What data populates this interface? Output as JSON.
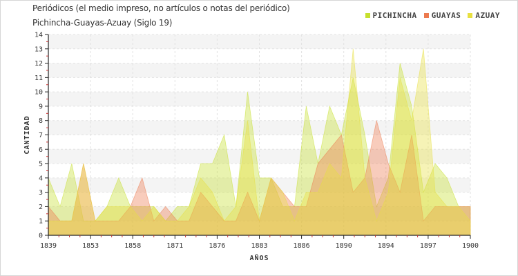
{
  "title": "Periódicos (el medio impreso, no artículos o notas del periódico)",
  "subtitle": "Pichincha-Guayas-Azuay (Siglo 19)",
  "chart_data": {
    "type": "area",
    "xlabel": "AÑOS",
    "ylabel": "CANTIDAD",
    "ylim": [
      0,
      14
    ],
    "yticks": [
      0,
      1,
      2,
      3,
      4,
      5,
      6,
      7,
      8,
      9,
      10,
      11,
      12,
      13,
      14
    ],
    "xtick_labels": [
      "1839",
      "1853",
      "1858",
      "1871",
      "1876",
      "1883",
      "1886",
      "1890",
      "1894",
      "1897",
      "1900"
    ],
    "grid": true,
    "legend_position": "top-right",
    "series": [
      {
        "name": "PICHINCHA",
        "color": "#c6e02e",
        "values": [
          4,
          2,
          5,
          1,
          1,
          2,
          4,
          2,
          2,
          2,
          1,
          2,
          2,
          5,
          5,
          7,
          2,
          10,
          4,
          4,
          2,
          2,
          9,
          5,
          9,
          7,
          11,
          7,
          2,
          4,
          12,
          9,
          3,
          5,
          4,
          2,
          2
        ]
      },
      {
        "name": "GUAYAS",
        "color": "#ec7a4f",
        "values": [
          2,
          1,
          1,
          5,
          1,
          1,
          1,
          2,
          4,
          1,
          2,
          1,
          1,
          3,
          2,
          1,
          1,
          3,
          1,
          4,
          3,
          2,
          2,
          5,
          6,
          7,
          3,
          4,
          8,
          5,
          3,
          7,
          1,
          2,
          2,
          2,
          2
        ]
      },
      {
        "name": "AZUAY",
        "color": "#e8e040",
        "values": [
          1,
          1,
          1,
          5,
          1,
          2,
          2,
          2,
          1,
          2,
          1,
          1,
          2,
          4,
          3,
          1,
          2,
          8,
          1,
          4,
          3,
          1,
          3,
          3,
          5,
          4,
          13,
          4,
          1,
          3,
          11,
          8,
          13,
          3,
          2,
          2,
          1
        ]
      }
    ]
  }
}
